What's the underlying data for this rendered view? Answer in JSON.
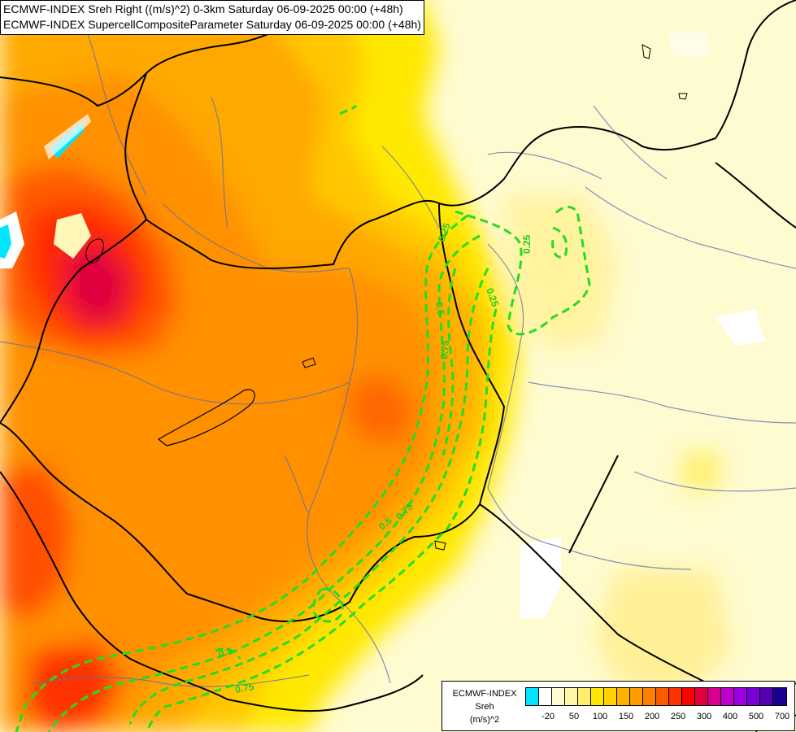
{
  "header": {
    "line1": "ECMWF-INDEX Sreh Right ((m/s)^2) 0-3km Saturday 06-09-2025 00:00 (+48h)",
    "line2": "ECMWF-INDEX SupercellCompositeParameter Saturday 06-09-2025 00:00 (+48h)"
  },
  "legend": {
    "title_1": "ECMWF-INDEX",
    "title_2": "Sreh",
    "title_3": "(m/s)^2",
    "colors": [
      "#00e5ff",
      "#ffffff",
      "#fffbd0",
      "#fff5a8",
      "#ffef70",
      "#ffe800",
      "#ffd200",
      "#ffb300",
      "#ff9c00",
      "#ff8000",
      "#ff5c00",
      "#ff3200",
      "#ff0000",
      "#e00040",
      "#d60090",
      "#c000c8",
      "#9a00e0",
      "#7a00d8",
      "#5200b0",
      "#1a0090"
    ],
    "tick_labels": [
      "-20",
      "50",
      "100",
      "150",
      "200",
      "250",
      "300",
      "400",
      "500",
      "700"
    ]
  },
  "contour_labels": [
    "0.25",
    "0.25",
    "0.25",
    "0.5",
    "0.75",
    "0.5",
    "0.75",
    "0.5",
    "0.75"
  ]
}
